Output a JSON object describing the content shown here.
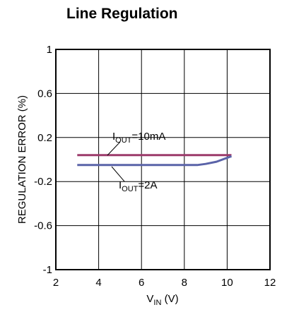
{
  "chart_data": {
    "type": "line",
    "title": "Line Regulation",
    "xlabel": {
      "main": "V",
      "sub": "IN",
      "suffix": " (V)"
    },
    "ylabel": "REGULATION ERROR (%)",
    "xlim": [
      2,
      12
    ],
    "ylim": [
      -1,
      1
    ],
    "xticks": [
      2,
      4,
      6,
      8,
      10,
      12
    ],
    "yticks": [
      1,
      0.6,
      0.2,
      -0.2,
      -0.6,
      -1
    ],
    "xtick_labels": [
      "2",
      "4",
      "6",
      "8",
      "10",
      "12"
    ],
    "ytick_labels": [
      "1",
      "0.6",
      "0.2",
      "-0.2",
      "-0.6",
      "-1"
    ],
    "grid": true,
    "series": [
      {
        "name": "10mA",
        "color": "#9c3a6a",
        "x": [
          3,
          10.2
        ],
        "y": [
          0.04,
          0.04
        ]
      },
      {
        "name": "2A",
        "color": "#5a63a8",
        "x": [
          3,
          8.6,
          9.0,
          9.5,
          10.2
        ],
        "y": [
          -0.05,
          -0.05,
          -0.04,
          -0.02,
          0.03
        ]
      }
    ],
    "annotations": [
      {
        "main": "I",
        "sub": "OUT",
        "suffix": "=10mA"
      },
      {
        "main": "I",
        "sub": "OUT",
        "suffix": "=2A"
      }
    ]
  }
}
